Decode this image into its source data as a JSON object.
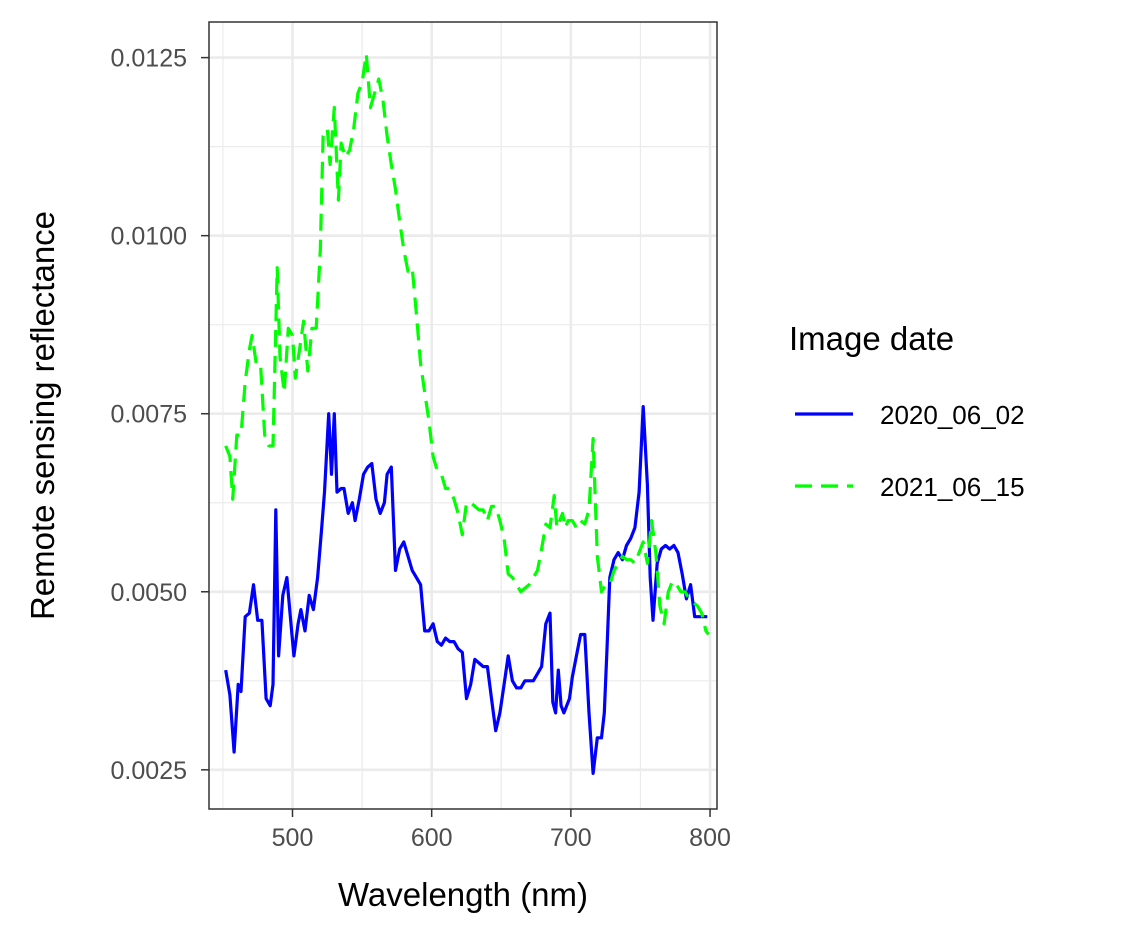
{
  "chart_data": {
    "type": "line",
    "title": "",
    "xlabel": "Wavelength (nm)",
    "ylabel": "Remote sensing reflectance",
    "xlim": [
      440,
      805
    ],
    "ylim": [
      0.00195,
      0.013
    ],
    "x_ticks": [
      500,
      600,
      700,
      800
    ],
    "x_tick_labels": [
      "500",
      "600",
      "700",
      "800"
    ],
    "y_ticks": [
      0.0025,
      0.005,
      0.0075,
      0.01,
      0.0125
    ],
    "y_tick_labels": [
      "0.0025",
      "0.0050",
      "0.0075",
      "0.0100",
      "0.0125"
    ],
    "grid": true,
    "theme": "bw",
    "legend": {
      "title": "Image date",
      "position": "right"
    },
    "series": [
      {
        "name": "2020_06_02",
        "color": "#0000ff",
        "dash": "solid",
        "x": [
          452,
          455,
          458,
          461,
          463,
          466,
          469,
          472,
          475,
          478,
          481,
          484,
          486,
          488,
          490,
          493,
          496,
          498,
          501,
          504,
          506,
          509,
          512,
          515,
          518,
          521,
          523,
          526,
          528,
          530,
          532,
          535,
          537,
          540,
          543,
          545,
          548,
          551,
          554,
          557,
          560,
          563,
          566,
          568,
          571,
          574,
          577,
          580,
          583,
          586,
          589,
          592,
          595,
          598,
          601,
          604,
          607,
          610,
          613,
          616,
          619,
          622,
          625,
          628,
          631,
          634,
          637,
          640,
          643,
          646,
          649,
          652,
          655,
          658,
          661,
          664,
          667,
          670,
          673,
          676,
          679,
          682,
          685,
          687,
          689,
          691,
          693,
          695,
          697,
          699,
          701,
          704,
          707,
          710,
          713,
          716,
          719,
          722,
          724,
          726,
          728,
          731,
          734,
          737,
          740,
          743,
          746,
          749,
          752,
          755,
          757,
          759,
          762,
          765,
          768,
          771,
          774,
          777,
          780,
          783,
          786,
          789,
          792,
          795,
          798
        ],
        "values": [
          0.0039,
          0.00355,
          0.00275,
          0.0037,
          0.0036,
          0.00465,
          0.0047,
          0.0051,
          0.0046,
          0.0046,
          0.0035,
          0.0034,
          0.0037,
          0.00615,
          0.0041,
          0.00495,
          0.0052,
          0.00475,
          0.0041,
          0.00455,
          0.00475,
          0.00445,
          0.00495,
          0.00475,
          0.0052,
          0.0059,
          0.0064,
          0.0075,
          0.00665,
          0.0075,
          0.0064,
          0.00645,
          0.00645,
          0.0061,
          0.00625,
          0.006,
          0.0063,
          0.00665,
          0.00675,
          0.0068,
          0.0063,
          0.0061,
          0.00625,
          0.00665,
          0.00675,
          0.0053,
          0.0056,
          0.0057,
          0.0055,
          0.0053,
          0.0052,
          0.0051,
          0.00445,
          0.00445,
          0.00455,
          0.0043,
          0.00425,
          0.00435,
          0.0043,
          0.0043,
          0.0042,
          0.00415,
          0.0035,
          0.0037,
          0.00405,
          0.004,
          0.00395,
          0.00395,
          0.0035,
          0.00305,
          0.0033,
          0.0037,
          0.0041,
          0.00375,
          0.00365,
          0.00365,
          0.00375,
          0.00375,
          0.00375,
          0.00385,
          0.00395,
          0.00455,
          0.0047,
          0.00345,
          0.0033,
          0.0039,
          0.0034,
          0.0033,
          0.0034,
          0.0035,
          0.0038,
          0.0041,
          0.0044,
          0.0044,
          0.0033,
          0.00245,
          0.00295,
          0.00295,
          0.0033,
          0.0042,
          0.0052,
          0.00545,
          0.00555,
          0.00545,
          0.00565,
          0.00575,
          0.0059,
          0.0064,
          0.0076,
          0.0065,
          0.0052,
          0.0046,
          0.0054,
          0.0056,
          0.00565,
          0.0056,
          0.00565,
          0.00555,
          0.00525,
          0.0049,
          0.0051,
          0.00465,
          0.00465,
          0.00465,
          0.00465
        ]
      },
      {
        "name": "2021_06_15",
        "color": "#00ff00",
        "dash": "dashed",
        "x": [
          452,
          455,
          457,
          460,
          463,
          466,
          469,
          471,
          474,
          477,
          480,
          483,
          486,
          489,
          491,
          494,
          497,
          500,
          502,
          505,
          508,
          511,
          514,
          517,
          520,
          522,
          525,
          527,
          530,
          533,
          535,
          538,
          541,
          544,
          547,
          550,
          553,
          556,
          559,
          562,
          565,
          568,
          571,
          574,
          577,
          580,
          583,
          586,
          589,
          592,
          595,
          598,
          601,
          604,
          607,
          610,
          613,
          616,
          619,
          622,
          625,
          628,
          631,
          634,
          637,
          640,
          643,
          646,
          649,
          652,
          655,
          658,
          661,
          664,
          667,
          670,
          673,
          676,
          679,
          682,
          685,
          688,
          690,
          692,
          694,
          696,
          698,
          701,
          704,
          707,
          710,
          713,
          716,
          719,
          722,
          725,
          728,
          731,
          734,
          737,
          740,
          743,
          746,
          749,
          752,
          755,
          758,
          761,
          764,
          767,
          770,
          773,
          776,
          779,
          782,
          785,
          788,
          791,
          794,
          797,
          799
        ],
        "values": [
          0.00705,
          0.0069,
          0.0063,
          0.0072,
          0.0072,
          0.00795,
          0.0084,
          0.0086,
          0.0082,
          0.0082,
          0.0072,
          0.00705,
          0.00705,
          0.00955,
          0.0083,
          0.0078,
          0.0087,
          0.0086,
          0.008,
          0.0084,
          0.0088,
          0.0081,
          0.0087,
          0.0087,
          0.0098,
          0.0114,
          0.0115,
          0.011,
          0.0118,
          0.0105,
          0.0113,
          0.0111,
          0.0112,
          0.0115,
          0.012,
          0.01215,
          0.01255,
          0.0118,
          0.012,
          0.0122,
          0.0119,
          0.0114,
          0.011,
          0.01065,
          0.0102,
          0.0098,
          0.0095,
          0.00955,
          0.0089,
          0.0082,
          0.0078,
          0.0074,
          0.0069,
          0.0067,
          0.00665,
          0.00645,
          0.00645,
          0.0063,
          0.0061,
          0.0058,
          0.00625,
          0.00625,
          0.0062,
          0.00615,
          0.00615,
          0.006,
          0.0062,
          0.0062,
          0.006,
          0.00575,
          0.00525,
          0.0052,
          0.0051,
          0.005,
          0.00505,
          0.0051,
          0.0052,
          0.0053,
          0.0056,
          0.00595,
          0.0059,
          0.00635,
          0.0059,
          0.006,
          0.0061,
          0.0059,
          0.006,
          0.006,
          0.0059,
          0.006,
          0.00595,
          0.00615,
          0.00715,
          0.0055,
          0.005,
          0.0051,
          0.0051,
          0.0053,
          0.0054,
          0.0055,
          0.00545,
          0.00545,
          0.0054,
          0.00555,
          0.0057,
          0.0054,
          0.006,
          0.00555,
          0.0048,
          0.00455,
          0.005,
          0.00515,
          0.0051,
          0.005,
          0.005,
          0.0049,
          0.00485,
          0.0048,
          0.0047,
          0.00445,
          0.0044
        ]
      }
    ]
  }
}
